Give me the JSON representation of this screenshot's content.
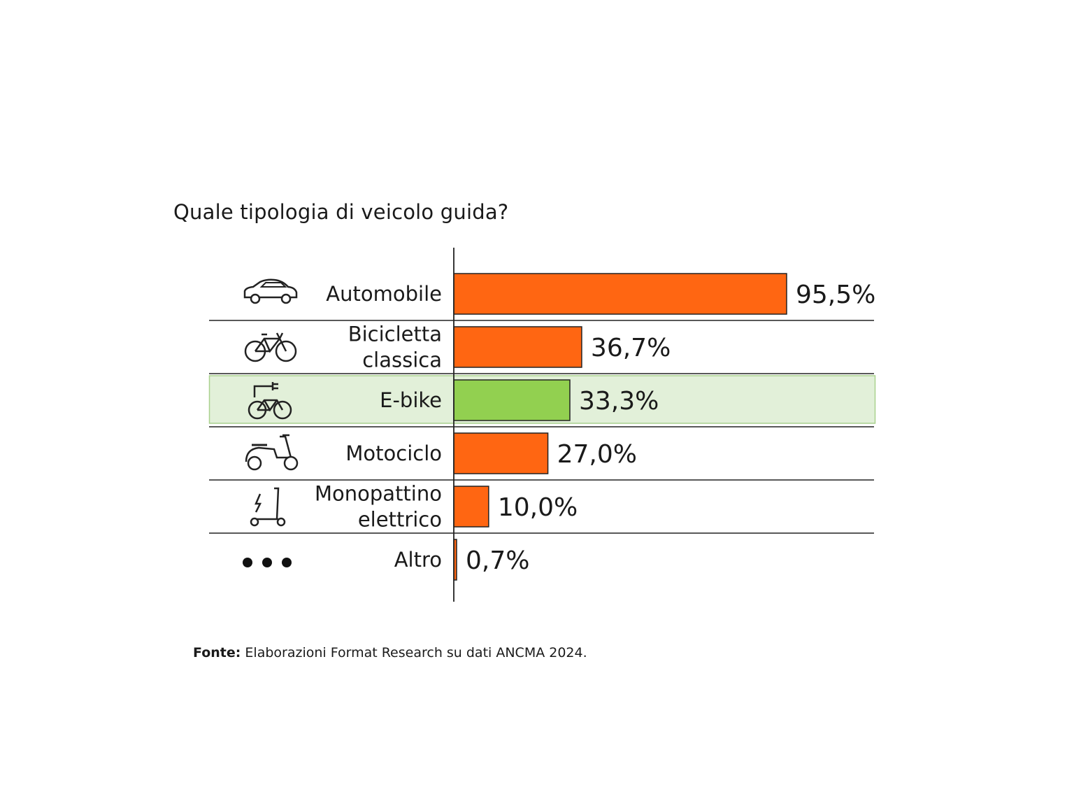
{
  "page": {
    "title": "Quale tipologia di veicolo guida?",
    "source_label": "Fonte:",
    "source_text": "Elaborazioni Format Research su dati ANCMA 2024."
  },
  "colors": {
    "bar": "#FF6612",
    "bar_highlight": "#92D050",
    "highlight_row_bg": "#E2F0D9",
    "highlight_row_border": "#A9D18E"
  },
  "chart_data": {
    "type": "bar",
    "orientation": "horizontal",
    "title": "Quale tipologia di veicolo guida?",
    "xlabel": "",
    "ylabel": "",
    "xlim": [
      0,
      100
    ],
    "unit": "%",
    "highlight": "E-bike",
    "categories": [
      {
        "label": [
          "Automobile"
        ],
        "icon": "car-icon",
        "value": 95.5,
        "value_label": "95,5%"
      },
      {
        "label": [
          "Bicicletta",
          "classica"
        ],
        "icon": "bicycle-icon",
        "value": 36.7,
        "value_label": "36,7%"
      },
      {
        "label": [
          "E-bike"
        ],
        "icon": "e-bike-icon",
        "value": 33.3,
        "value_label": "33,3%"
      },
      {
        "label": [
          "Motociclo"
        ],
        "icon": "scooter-icon",
        "value": 27.0,
        "value_label": "27,0%"
      },
      {
        "label": [
          "Monopattino",
          "elettrico"
        ],
        "icon": "e-scooter-icon",
        "value": 10.0,
        "value_label": "10,0%"
      },
      {
        "label": [
          "Altro"
        ],
        "icon": "dots-icon",
        "value": 0.7,
        "value_label": "0,7%"
      }
    ]
  }
}
